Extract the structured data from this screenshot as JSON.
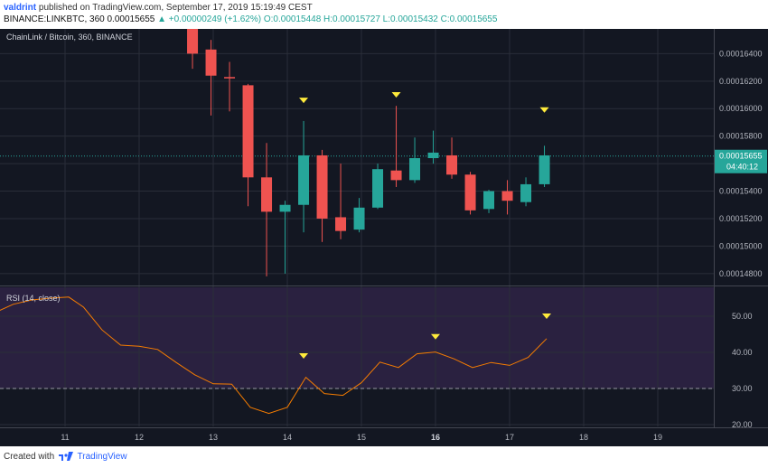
{
  "header": {
    "author": "valdrint",
    "published_text": "published on TradingView.com, September 17, 2019 15:19:49 CEST",
    "symbol_line": "BINANCE:LINKBTC, 360  0.00015655",
    "change": "▲ +0.00000249 (+1.62%)",
    "ohlc": "O:0.00015448 H:0.00015727 L:0.00015432 C:0.00015655"
  },
  "footer": {
    "created_with": "Created with",
    "brand": "TradingView"
  },
  "colors": {
    "background": "#131722",
    "up": "#26a69a",
    "down": "#ef5350",
    "rsi_line": "#f57c00",
    "rsi_band": "#2a2140",
    "marker": "#ffeb3b",
    "price_line": "#26a69a"
  },
  "chart_data": [
    {
      "type": "candlestick",
      "title": "ChainLink / Bitcoin, 360, BINANCE",
      "x_ticks": [
        "11",
        "12",
        "13",
        "14",
        "15",
        "16",
        "17",
        "18",
        "19"
      ],
      "y_ticks": [
        "0.00014800",
        "0.00015000",
        "0.00015200",
        "0.00015400",
        "0.00015600",
        "0.00015800",
        "0.00016000",
        "0.00016200",
        "0.00016400"
      ],
      "ylim": [
        0.0001472,
        0.0001658
      ],
      "last_price_label": "0.00015655",
      "countdown_label": "04:40:12",
      "last_price": 0.00015655,
      "candles": [
        {
          "t": 12.72,
          "o": 0.0001665,
          "h": 0.000167,
          "l": 0.0001629,
          "c": 0.000164
        },
        {
          "t": 12.97,
          "o": 0.0001643,
          "h": 0.000165,
          "l": 0.0001595,
          "c": 0.0001624
        },
        {
          "t": 13.22,
          "o": 0.0001623,
          "h": 0.0001634,
          "l": 0.0001598,
          "c": 0.0001622
        },
        {
          "t": 13.47,
          "o": 0.0001617,
          "h": 0.0001618,
          "l": 0.0001529,
          "c": 0.000155
        },
        {
          "t": 13.72,
          "o": 0.000155,
          "h": 0.0001575,
          "l": 0.0001478,
          "c": 0.0001525
        },
        {
          "t": 13.97,
          "o": 0.0001525,
          "h": 0.0001533,
          "l": 0.000148,
          "c": 0.000153
        },
        {
          "t": 14.22,
          "o": 0.000153,
          "h": 0.0001591,
          "l": 0.000151,
          "c": 0.0001566
        },
        {
          "t": 14.47,
          "o": 0.0001566,
          "h": 0.000157,
          "l": 0.0001503,
          "c": 0.000152
        },
        {
          "t": 14.72,
          "o": 0.0001521,
          "h": 0.000156,
          "l": 0.0001505,
          "c": 0.0001511
        },
        {
          "t": 14.97,
          "o": 0.0001512,
          "h": 0.0001535,
          "l": 0.000151,
          "c": 0.0001528
        },
        {
          "t": 15.22,
          "o": 0.0001528,
          "h": 0.000156,
          "l": 0.0001527,
          "c": 0.0001556
        },
        {
          "t": 15.47,
          "o": 0.0001555,
          "h": 0.0001602,
          "l": 0.0001543,
          "c": 0.0001548
        },
        {
          "t": 15.72,
          "o": 0.0001548,
          "h": 0.0001579,
          "l": 0.0001546,
          "c": 0.0001564
        },
        {
          "t": 15.97,
          "o": 0.0001564,
          "h": 0.0001584,
          "l": 0.000156,
          "c": 0.0001568
        },
        {
          "t": 16.22,
          "o": 0.0001566,
          "h": 0.0001579,
          "l": 0.0001549,
          "c": 0.0001552
        },
        {
          "t": 16.47,
          "o": 0.0001552,
          "h": 0.0001554,
          "l": 0.0001523,
          "c": 0.0001526
        },
        {
          "t": 16.72,
          "o": 0.0001527,
          "h": 0.0001541,
          "l": 0.0001524,
          "c": 0.000154
        },
        {
          "t": 16.97,
          "o": 0.000154,
          "h": 0.0001548,
          "l": 0.0001523,
          "c": 0.0001533
        },
        {
          "t": 17.22,
          "o": 0.0001532,
          "h": 0.000155,
          "l": 0.0001529,
          "c": 0.0001545
        },
        {
          "t": 17.47,
          "o": 0.0001545,
          "h": 0.0001573,
          "l": 0.0001543,
          "c": 0.0001566
        }
      ],
      "markers": [
        {
          "t": 14.22,
          "v": 0.0001606
        },
        {
          "t": 15.47,
          "v": 0.000161
        },
        {
          "t": 17.47,
          "v": 0.0001599
        }
      ]
    },
    {
      "type": "line",
      "title": "RSI (14, close)",
      "y_ticks": [
        "20.00",
        "30.00",
        "40.00",
        "50.00"
      ],
      "ylim": [
        19.5,
        58
      ],
      "band": [
        30,
        58
      ],
      "reference_line": 30,
      "series": [
        {
          "x": [
            10.0,
            10.3,
            10.55,
            10.8,
            11.05,
            11.25,
            11.5,
            11.75,
            12.0,
            12.25,
            12.5,
            12.75,
            13.0,
            13.25,
            13.5,
            13.75,
            14.0,
            14.25,
            14.5,
            14.75,
            15.0,
            15.25,
            15.5,
            15.75,
            16.0,
            16.25,
            16.5,
            16.75,
            17.0,
            17.25,
            17.5
          ],
          "y": [
            50.5,
            53.3,
            54.5,
            55.0,
            55.3,
            52.5,
            46.2,
            42.0,
            41.7,
            40.8,
            37.2,
            33.8,
            31.3,
            31.2,
            24.8,
            23.1,
            24.8,
            33.1,
            28.6,
            28.1,
            31.6,
            37.3,
            35.8,
            39.6,
            40.1,
            38.2,
            35.8,
            37.2,
            36.4,
            38.6,
            43.8
          ]
        }
      ],
      "markers": [
        {
          "t": 14.22,
          "v": 39.0
        },
        {
          "t": 16.0,
          "v": 44.3
        },
        {
          "t": 17.5,
          "v": 50.0
        }
      ]
    }
  ]
}
